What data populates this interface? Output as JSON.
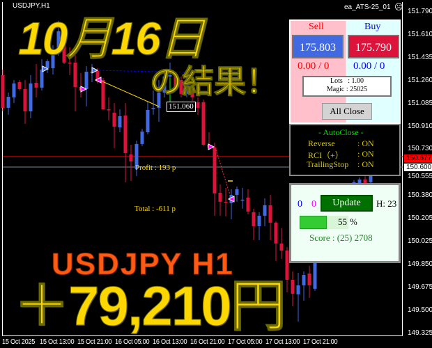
{
  "window": {
    "symbol_label": "USDJPY,H1",
    "ea_name": "ea_ATS-25_01",
    "status_icon": "frown-face-icon"
  },
  "overlay": {
    "headline_date": "10月16日",
    "headline_result": "の結果！",
    "pair_timeframe": "USDJPY H1",
    "profit_amount": "＋79,210円"
  },
  "chart_labels": {
    "profit": "Profit : 193 p",
    "total": "Total : -611 p",
    "entry_price": "151.060"
  },
  "price_axis": [
    "151.790",
    "151.610",
    "151.435",
    "151.260",
    "151.085",
    "150.910",
    "150.730",
    "150.555",
    "150.380",
    "150.205",
    "150.025",
    "149.850",
    "149.675",
    "149.500",
    "149.325"
  ],
  "price_tags": {
    "bid": "150.677",
    "line": "150.600"
  },
  "time_axis": [
    "15 Oct 2025",
    "15 Oct 13:00",
    "15 Oct 21:00",
    "16 Oct 05:00",
    "16 Oct 13:00",
    "16 Oct 21:00",
    "17 Oct 05:00",
    "17 Oct 13:00",
    "17 Oct 21:00"
  ],
  "colors": {
    "bull": "#4169e1",
    "bear": "#dc143c",
    "bid_line": "#ff0000",
    "price_line": "#778899",
    "overlay_yellow": "#ffd700",
    "overlay_orange": "#ff5a14"
  },
  "chart_data": {
    "type": "candlestick",
    "ylim": [
      149.325,
      151.79
    ],
    "ohlc": [
      [
        151.305,
        151.347,
        151.027,
        151.054
      ],
      [
        151.054,
        151.171,
        151.001,
        151.139
      ],
      [
        151.134,
        151.267,
        151.091,
        151.241
      ],
      [
        151.251,
        151.267,
        151.187,
        151.198
      ],
      [
        151.198,
        151.267,
        150.931,
        151.027
      ],
      [
        151.027,
        151.305,
        150.974,
        151.241
      ],
      [
        151.246,
        151.39,
        151.134,
        151.209
      ],
      [
        151.209,
        151.427,
        151.187,
        151.347
      ],
      [
        151.358,
        151.427,
        151.321,
        151.411
      ],
      [
        151.358,
        151.534,
        151.31,
        151.481
      ],
      [
        151.481,
        151.721,
        151.454,
        151.641
      ],
      [
        151.561,
        151.588,
        151.39,
        151.401
      ],
      [
        151.401,
        151.518,
        151.305,
        151.396
      ],
      [
        151.401,
        151.481,
        151.027,
        151.214
      ],
      [
        151.214,
        151.321,
        151.134,
        151.187
      ],
      [
        151.198,
        151.374,
        151.065,
        151.331
      ],
      [
        151.326,
        151.39,
        151.251,
        151.331
      ],
      [
        151.337,
        151.358,
        151.241,
        151.257
      ],
      [
        151.267,
        151.283,
        151.043,
        151.043
      ],
      [
        151.043,
        151.134,
        150.958,
        151.038
      ],
      [
        151.017,
        151.091,
        150.745,
        150.91
      ],
      [
        150.904,
        151.043,
        150.867,
        150.99
      ],
      [
        150.995,
        151.091,
        150.483,
        150.707
      ],
      [
        150.697,
        150.771,
        150.494,
        150.643
      ],
      [
        150.585,
        150.803,
        150.531,
        150.777
      ],
      [
        150.777,
        150.894,
        150.761,
        150.872
      ],
      [
        150.867,
        151.107,
        150.851,
        151.038
      ],
      [
        151.049,
        151.187,
        151.001,
        151.054
      ],
      [
        151.054,
        151.267,
        150.947,
        151.171
      ],
      [
        151.171,
        151.347,
        151.134,
        151.294
      ],
      [
        151.294,
        151.401,
        151.027,
        151.305
      ],
      [
        151.305,
        151.321,
        151.187,
        151.214
      ],
      [
        151.267,
        151.294,
        151.134,
        151.161
      ],
      [
        151.161,
        151.267,
        151.134,
        151.241
      ],
      [
        151.187,
        151.214,
        151.107,
        151.134
      ],
      [
        151.097,
        151.134,
        151.001,
        151.054
      ],
      [
        151.097,
        151.118,
        150.761,
        150.771
      ],
      [
        150.771,
        150.867,
        150.734,
        150.75
      ],
      [
        150.75,
        150.787,
        150.227,
        150.398
      ],
      [
        150.403,
        150.467,
        150.227,
        150.334
      ],
      [
        150.334,
        150.441,
        150.222,
        150.329
      ],
      [
        150.323,
        150.43,
        150.2,
        150.387
      ],
      [
        150.387,
        150.451,
        150.334,
        150.43
      ],
      [
        150.345,
        150.441,
        150.281,
        150.35
      ],
      [
        150.366,
        150.43,
        150.238,
        150.259
      ],
      [
        150.254,
        150.281,
        150.04,
        150.147
      ],
      [
        150.147,
        150.254,
        150.04,
        150.227
      ],
      [
        150.227,
        150.361,
        150.147,
        150.307
      ],
      [
        150.307,
        150.387,
        150.04,
        150.174
      ],
      [
        150.174,
        150.184,
        149.88,
        150.014
      ],
      [
        150.014,
        150.131,
        149.896,
        149.96
      ],
      [
        149.96,
        149.987,
        149.64,
        149.736
      ],
      [
        149.736,
        149.8,
        149.533,
        149.629
      ],
      [
        149.624,
        149.789,
        149.416,
        149.693
      ],
      [
        149.693,
        149.8,
        149.576,
        149.773
      ],
      [
        149.784,
        149.843,
        149.597,
        149.693
      ],
      [
        149.667,
        149.96,
        149.651,
        149.88
      ],
      [
        149.88,
        150.08,
        149.87,
        150.067
      ],
      [
        150.067,
        150.19,
        150.05,
        150.174
      ],
      [
        150.174,
        150.3,
        150.15,
        150.281
      ],
      [
        150.254,
        150.35,
        150.23,
        150.334
      ],
      [
        150.361,
        150.38,
        150.29,
        150.307
      ],
      [
        150.334,
        150.46,
        150.32,
        150.441
      ],
      [
        150.43,
        150.5,
        150.42,
        150.483
      ],
      [
        150.462,
        150.52,
        150.44,
        150.505
      ],
      [
        150.505,
        150.531,
        150.441,
        150.478
      ],
      [
        150.483,
        150.62,
        150.47,
        150.601
      ]
    ]
  },
  "trade_panel": {
    "sell_label": "Sell",
    "buy_label": "Buy",
    "sell_price": "175.803",
    "buy_price": "175.790",
    "sell_pl": "0.00 / 0",
    "buy_pl": "0.00 / 0",
    "lots": "Lots   : 1.00",
    "magic": "Magic : 25025",
    "all_close_label": "All Close"
  },
  "autoclose_panel": {
    "title": "- AutoClose -",
    "rows": [
      {
        "label": "Reverse",
        "value": ": ON"
      },
      {
        "label": "RCI（+）",
        "value": ": ON"
      },
      {
        "label": "TrailingStop",
        "value": ": ON"
      }
    ]
  },
  "status_panel": {
    "count_blue": "0",
    "count_magenta": "0",
    "update_label": "Update",
    "hours": "H: 23",
    "progress_percent": 55,
    "progress_text": "55",
    "percent_sign": "%",
    "score": "Score : (25) 2708"
  }
}
